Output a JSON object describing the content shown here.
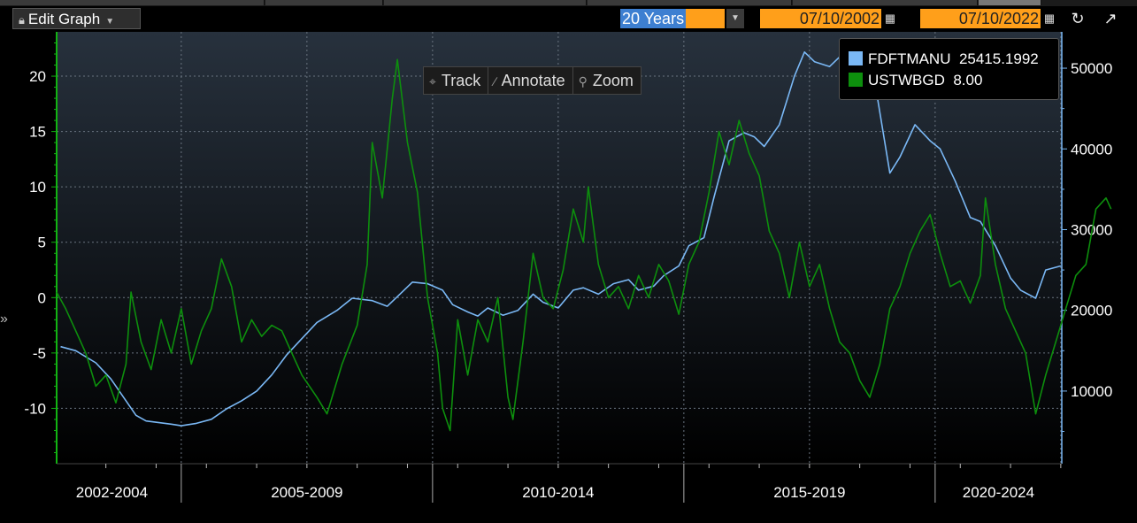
{
  "toolbar": {
    "edit_graph_label": "Edit Graph",
    "period_label": "20 Years",
    "start_date": "07/10/2002",
    "end_date": "07/10/2022"
  },
  "overlay": {
    "track": "Track",
    "annotate": "Annotate",
    "zoom": "Zoom"
  },
  "legend": {
    "items": [
      {
        "ticker": "FDFTMANU",
        "value": "25415.1992",
        "color": "#7ab8f5"
      },
      {
        "ticker": "USTWBGD",
        "value": "8.00",
        "color": "#0d8f0d"
      }
    ]
  },
  "chart_data": {
    "type": "line",
    "x_labels": [
      "2002-2004",
      "2005-2009",
      "2010-2014",
      "2015-2019",
      "2020-2024"
    ],
    "x_range": [
      2002.52,
      2022.52
    ],
    "left_axis": {
      "ticks": [
        20,
        15,
        10,
        5,
        0,
        -5,
        -10
      ],
      "range": [
        -15,
        24
      ]
    },
    "right_axis": {
      "ticks": [
        50000,
        40000,
        30000,
        20000,
        10000
      ],
      "range": [
        1000,
        54500
      ]
    },
    "grid": true,
    "legend_position": "top-right",
    "series": [
      {
        "name": "FDFTMANU",
        "axis": "right",
        "color": "#7ab8f5",
        "points": [
          [
            2002.6,
            15500
          ],
          [
            2002.9,
            15000
          ],
          [
            2003.3,
            13500
          ],
          [
            2003.6,
            11500
          ],
          [
            2003.9,
            8800
          ],
          [
            2004.1,
            7000
          ],
          [
            2004.3,
            6300
          ],
          [
            2004.8,
            5900
          ],
          [
            2005.0,
            5700
          ],
          [
            2005.3,
            6000
          ],
          [
            2005.6,
            6500
          ],
          [
            2005.9,
            7800
          ],
          [
            2006.2,
            8800
          ],
          [
            2006.5,
            10000
          ],
          [
            2006.8,
            12000
          ],
          [
            2007.1,
            14500
          ],
          [
            2007.4,
            16500
          ],
          [
            2007.7,
            18500
          ],
          [
            2008.1,
            20000
          ],
          [
            2008.4,
            21500
          ],
          [
            2008.8,
            21200
          ],
          [
            2009.1,
            20500
          ],
          [
            2009.3,
            21700
          ],
          [
            2009.6,
            23500
          ],
          [
            2009.9,
            23300
          ],
          [
            2010.2,
            22500
          ],
          [
            2010.4,
            20700
          ],
          [
            2010.7,
            19800
          ],
          [
            2010.9,
            19300
          ],
          [
            2011.1,
            20300
          ],
          [
            2011.4,
            19400
          ],
          [
            2011.7,
            20000
          ],
          [
            2012.0,
            22000
          ],
          [
            2012.2,
            21000
          ],
          [
            2012.5,
            20300
          ],
          [
            2012.8,
            22500
          ],
          [
            2013.0,
            22800
          ],
          [
            2013.3,
            22000
          ],
          [
            2013.6,
            23300
          ],
          [
            2013.9,
            23800
          ],
          [
            2014.1,
            22500
          ],
          [
            2014.4,
            23000
          ],
          [
            2014.6,
            24300
          ],
          [
            2014.9,
            25500
          ],
          [
            2015.1,
            28000
          ],
          [
            2015.4,
            29000
          ],
          [
            2015.6,
            34000
          ],
          [
            2015.9,
            41000
          ],
          [
            2016.2,
            42000
          ],
          [
            2016.4,
            41500
          ],
          [
            2016.6,
            40300
          ],
          [
            2016.9,
            43000
          ],
          [
            2017.2,
            49000
          ],
          [
            2017.4,
            52000
          ],
          [
            2017.6,
            50800
          ],
          [
            2017.9,
            50200
          ],
          [
            2018.2,
            52000
          ],
          [
            2018.5,
            48000
          ],
          [
            2018.8,
            48300
          ],
          [
            2019.1,
            37000
          ],
          [
            2019.3,
            39000
          ],
          [
            2019.6,
            43000
          ],
          [
            2019.9,
            41000
          ],
          [
            2020.1,
            40000
          ],
          [
            2020.4,
            36000
          ],
          [
            2020.7,
            31500
          ],
          [
            2020.9,
            31000
          ],
          [
            2021.2,
            28000
          ],
          [
            2021.5,
            24000
          ],
          [
            2021.7,
            22500
          ],
          [
            2022.0,
            21500
          ],
          [
            2022.2,
            25000
          ],
          [
            2022.5,
            25500
          ]
        ]
      },
      {
        "name": "USTWBGD",
        "axis": "left",
        "color": "#0d8f0d",
        "points": [
          [
            2002.52,
            0.5
          ],
          [
            2002.7,
            -1.0
          ],
          [
            2002.9,
            -3.0
          ],
          [
            2003.1,
            -5.0
          ],
          [
            2003.3,
            -8.0
          ],
          [
            2003.5,
            -7.0
          ],
          [
            2003.7,
            -9.5
          ],
          [
            2003.9,
            -6.0
          ],
          [
            2004.0,
            0.5
          ],
          [
            2004.2,
            -4.0
          ],
          [
            2004.4,
            -6.5
          ],
          [
            2004.6,
            -2.0
          ],
          [
            2004.8,
            -5.0
          ],
          [
            2005.0,
            -1.0
          ],
          [
            2005.2,
            -6.0
          ],
          [
            2005.4,
            -3.0
          ],
          [
            2005.6,
            -1.0
          ],
          [
            2005.8,
            3.5
          ],
          [
            2006.0,
            1.0
          ],
          [
            2006.2,
            -4.0
          ],
          [
            2006.4,
            -2.0
          ],
          [
            2006.6,
            -3.5
          ],
          [
            2006.8,
            -2.5
          ],
          [
            2007.0,
            -3.0
          ],
          [
            2007.2,
            -5.0
          ],
          [
            2007.4,
            -7.0
          ],
          [
            2007.7,
            -9.0
          ],
          [
            2007.9,
            -10.5
          ],
          [
            2008.2,
            -6.0
          ],
          [
            2008.5,
            -2.5
          ],
          [
            2008.7,
            3.0
          ],
          [
            2008.8,
            14.0
          ],
          [
            2009.0,
            9.0
          ],
          [
            2009.2,
            18.0
          ],
          [
            2009.3,
            21.5
          ],
          [
            2009.5,
            14.0
          ],
          [
            2009.7,
            9.5
          ],
          [
            2009.9,
            0.0
          ],
          [
            2010.1,
            -5.0
          ],
          [
            2010.2,
            -10.0
          ],
          [
            2010.35,
            -12.0
          ],
          [
            2010.5,
            -2.0
          ],
          [
            2010.7,
            -7.0
          ],
          [
            2010.9,
            -2.0
          ],
          [
            2011.1,
            -4.0
          ],
          [
            2011.3,
            0.0
          ],
          [
            2011.5,
            -9.0
          ],
          [
            2011.6,
            -11.0
          ],
          [
            2011.8,
            -4.0
          ],
          [
            2012.0,
            4.0
          ],
          [
            2012.2,
            0.0
          ],
          [
            2012.4,
            -1.0
          ],
          [
            2012.6,
            2.5
          ],
          [
            2012.8,
            8.0
          ],
          [
            2013.0,
            5.0
          ],
          [
            2013.1,
            10.0
          ],
          [
            2013.3,
            3.0
          ],
          [
            2013.5,
            0.0
          ],
          [
            2013.7,
            1.0
          ],
          [
            2013.9,
            -1.0
          ],
          [
            2014.1,
            2.0
          ],
          [
            2014.3,
            0.0
          ],
          [
            2014.5,
            3.0
          ],
          [
            2014.7,
            1.5
          ],
          [
            2014.9,
            -1.5
          ],
          [
            2015.1,
            3.0
          ],
          [
            2015.3,
            5.0
          ],
          [
            2015.5,
            9.5
          ],
          [
            2015.7,
            15.0
          ],
          [
            2015.9,
            12.0
          ],
          [
            2016.1,
            16.0
          ],
          [
            2016.3,
            13.0
          ],
          [
            2016.5,
            11.0
          ],
          [
            2016.7,
            6.0
          ],
          [
            2016.9,
            4.0
          ],
          [
            2017.1,
            0.0
          ],
          [
            2017.3,
            5.0
          ],
          [
            2017.5,
            1.0
          ],
          [
            2017.7,
            3.0
          ],
          [
            2017.9,
            -1.0
          ],
          [
            2018.1,
            -4.0
          ],
          [
            2018.3,
            -5.0
          ],
          [
            2018.5,
            -7.5
          ],
          [
            2018.7,
            -9.0
          ],
          [
            2018.9,
            -6.0
          ],
          [
            2019.1,
            -1.0
          ],
          [
            2019.3,
            1.0
          ],
          [
            2019.5,
            4.0
          ],
          [
            2019.7,
            6.0
          ],
          [
            2019.9,
            7.5
          ],
          [
            2020.1,
            4.0
          ],
          [
            2020.3,
            1.0
          ],
          [
            2020.5,
            1.5
          ],
          [
            2020.7,
            -0.5
          ],
          [
            2020.9,
            2.0
          ],
          [
            2021.0,
            9.0
          ],
          [
            2021.2,
            3.0
          ],
          [
            2021.4,
            -1.0
          ],
          [
            2021.6,
            -3.0
          ],
          [
            2021.8,
            -5.0
          ],
          [
            2022.0,
            -10.5
          ],
          [
            2022.2,
            -7.0
          ],
          [
            2022.4,
            -4.0
          ],
          [
            2022.6,
            -1.0
          ],
          [
            2022.8,
            2.0
          ],
          [
            2023.0,
            3.0
          ],
          [
            2023.2,
            8.0
          ],
          [
            2023.4,
            9.0
          ],
          [
            2023.5,
            8.0
          ]
        ]
      }
    ]
  }
}
